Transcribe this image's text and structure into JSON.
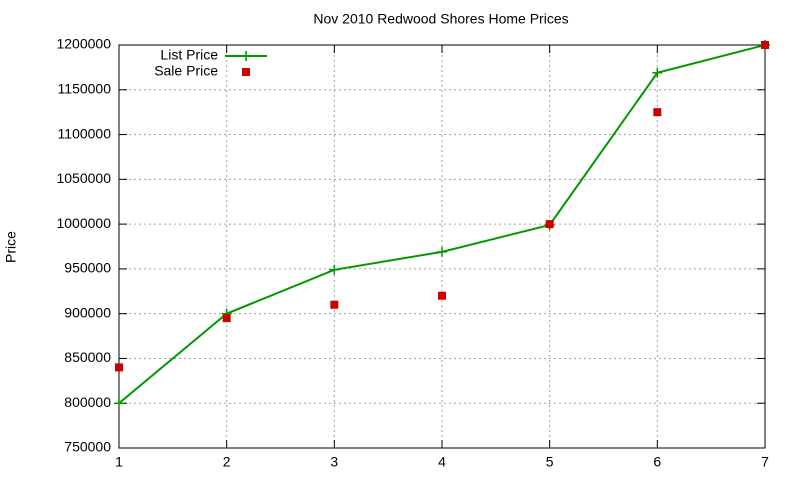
{
  "chart_data": {
    "type": "line",
    "title": "Nov 2010 Redwood Shores Home Prices",
    "y_label": "Price",
    "x": [
      1,
      2,
      3,
      4,
      5,
      6,
      7
    ],
    "series": [
      {
        "name": "List Price",
        "color": "#009900",
        "lines": true,
        "marker": "plus",
        "values": [
          800000,
          900000,
          949000,
          969000,
          999000,
          1169000,
          1200000
        ]
      },
      {
        "name": "Sale Price",
        "color": "#cc0000",
        "lines": false,
        "marker": "square",
        "values": [
          840000,
          895000,
          910000,
          920000,
          1000000,
          1125000,
          1200000
        ]
      }
    ],
    "xlim": [
      1,
      7
    ],
    "xticks": [
      1,
      2,
      3,
      4,
      5,
      6,
      7
    ],
    "ylim": [
      750000,
      1200000
    ],
    "yticks": [
      750000,
      800000,
      850000,
      900000,
      950000,
      1000000,
      1050000,
      1100000,
      1150000,
      1200000
    ],
    "grid": true,
    "legend": "top-left"
  }
}
